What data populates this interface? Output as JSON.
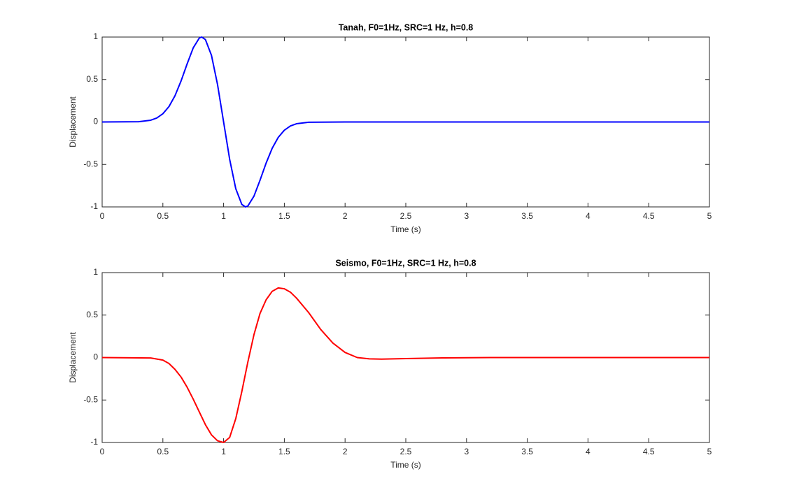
{
  "chart_data": [
    {
      "type": "line",
      "title": "Tanah, F0=1Hz, SRC=1 Hz, h=0.8",
      "x_label": "Time (s)",
      "y_label": "Displacement",
      "xlim": [
        0,
        5
      ],
      "ylim": [
        -1,
        1
      ],
      "xticks": [
        0,
        0.5,
        1,
        1.5,
        2,
        2.5,
        3,
        3.5,
        4,
        4.5,
        5
      ],
      "yticks": [
        -1,
        -0.5,
        0,
        0.5,
        1
      ],
      "series": [
        {
          "color": "#0000ff",
          "x": [
            0,
            0.3,
            0.4,
            0.45,
            0.5,
            0.55,
            0.6,
            0.65,
            0.7,
            0.75,
            0.8,
            0.82,
            0.85,
            0.9,
            0.95,
            1,
            1.05,
            1.1,
            1.15,
            1.18,
            1.2,
            1.25,
            1.3,
            1.35,
            1.4,
            1.45,
            1.5,
            1.55,
            1.6,
            1.7,
            2,
            5
          ],
          "values": [
            0,
            0.003,
            0.021,
            0.047,
            0.097,
            0.181,
            0.31,
            0.484,
            0.685,
            0.873,
            0.989,
            1,
            0.971,
            0.785,
            0.441,
            0,
            -0.441,
            -0.785,
            -0.971,
            -1,
            -0.989,
            -0.873,
            -0.685,
            -0.484,
            -0.31,
            -0.181,
            -0.097,
            -0.047,
            -0.021,
            -0.003,
            0,
            0
          ]
        }
      ]
    },
    {
      "type": "line",
      "title": "Seismo, F0=1Hz, SRC=1 Hz, h=0.8",
      "x_label": "Time (s)",
      "y_label": "Displacement",
      "xlim": [
        0,
        5
      ],
      "ylim": [
        -1,
        1
      ],
      "xticks": [
        0,
        0.5,
        1,
        1.5,
        2,
        2.5,
        3,
        3.5,
        4,
        4.5,
        5
      ],
      "yticks": [
        -1,
        -0.5,
        0,
        0.5,
        1
      ],
      "series": [
        {
          "color": "#ff0000",
          "x": [
            0,
            0.4,
            0.5,
            0.55,
            0.6,
            0.65,
            0.7,
            0.75,
            0.8,
            0.85,
            0.9,
            0.95,
            1,
            1.05,
            1.1,
            1.15,
            1.2,
            1.25,
            1.3,
            1.35,
            1.4,
            1.45,
            1.5,
            1.55,
            1.6,
            1.7,
            1.8,
            1.9,
            2,
            2.1,
            2.2,
            2.3,
            2.5,
            2.8,
            3.2,
            5
          ],
          "values": [
            0,
            -0.005,
            -0.03,
            -0.07,
            -0.14,
            -0.23,
            -0.35,
            -0.49,
            -0.64,
            -0.79,
            -0.91,
            -0.98,
            -1,
            -0.94,
            -0.72,
            -0.4,
            -0.05,
            0.27,
            0.52,
            0.68,
            0.78,
            0.82,
            0.81,
            0.77,
            0.7,
            0.53,
            0.33,
            0.17,
            0.06,
            0,
            -0.015,
            -0.018,
            -0.012,
            -0.004,
            0,
            0
          ]
        }
      ]
    }
  ]
}
